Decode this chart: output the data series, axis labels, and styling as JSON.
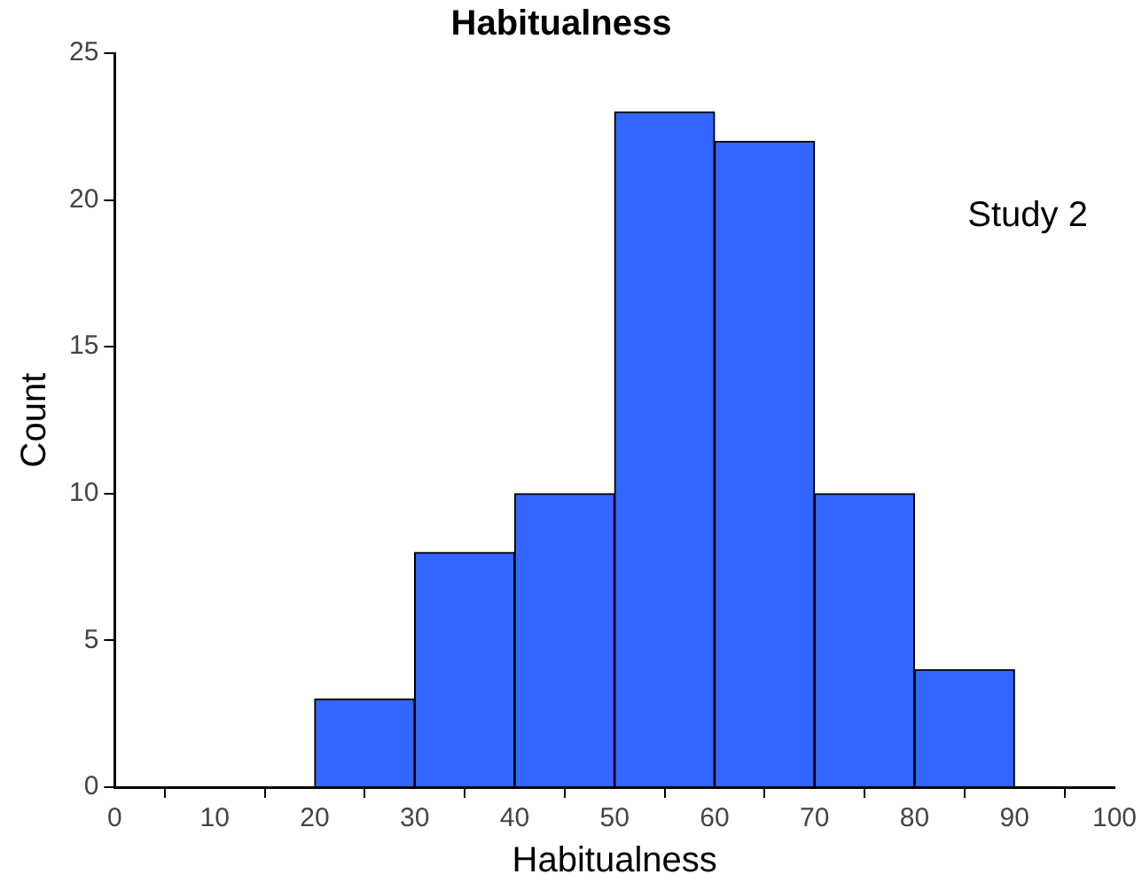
{
  "chart_data": {
    "type": "histogram",
    "title": "Habitualness",
    "xlabel": "Habitualness",
    "ylabel": "Count",
    "bins": [
      20,
      30,
      40,
      50,
      60,
      70,
      80,
      90
    ],
    "values": [
      3,
      8,
      10,
      23,
      22,
      10,
      4
    ],
    "color": "#3366ff",
    "xlim": [
      0,
      100
    ],
    "xticks": [
      0,
      10,
      20,
      30,
      40,
      50,
      60,
      70,
      80,
      90,
      100
    ],
    "ylim": [
      0,
      25
    ],
    "yticks": [
      0,
      5,
      10,
      15,
      20,
      25
    ],
    "grid": false,
    "legend": false,
    "annotations": [
      "Study 2"
    ]
  }
}
